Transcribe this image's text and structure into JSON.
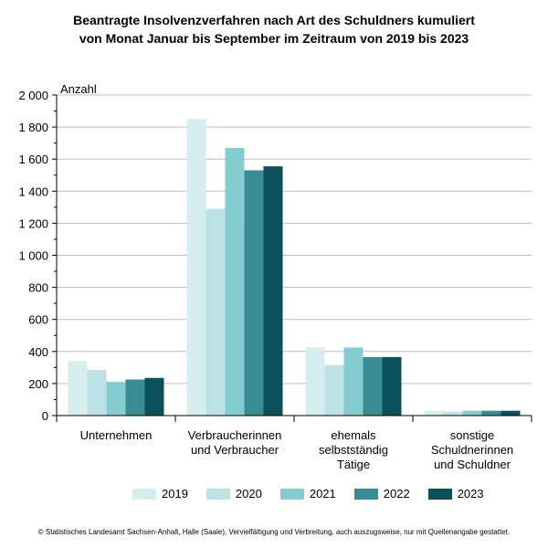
{
  "chart_data": {
    "type": "bar",
    "title": [
      "Beantragte Insolvenzverfahren nach Art des Schuldners kumuliert",
      "von Monat Januar bis September im Zeitraum von 2019 bis 2023"
    ],
    "ylabel": "Anzahl",
    "ylim": [
      0,
      2000
    ],
    "yticks": [
      0,
      200,
      400,
      600,
      800,
      1000,
      1200,
      1400,
      1600,
      1800,
      2000
    ],
    "ytick_labels": [
      "0",
      "200",
      "400",
      "600",
      "800",
      "1 000",
      "1 200",
      "1 400",
      "1 600",
      "1 800",
      "2 000"
    ],
    "grid": true,
    "legend_position": "bottom",
    "categories": [
      [
        "Unternehmen"
      ],
      [
        "Verbraucherinnen",
        "und Verbraucher"
      ],
      [
        "ehemals",
        "selbstständig",
        "Tätige"
      ],
      [
        "sonstige",
        "Schuldnerinnen",
        "und Schuldner"
      ]
    ],
    "series": [
      {
        "name": "2019",
        "color": "#d6eef0",
        "values": [
          340,
          1850,
          425,
          30
        ]
      },
      {
        "name": "2020",
        "color": "#bde2e5",
        "values": [
          285,
          1290,
          315,
          25
        ]
      },
      {
        "name": "2021",
        "color": "#85ccd1",
        "values": [
          210,
          1670,
          425,
          30
        ]
      },
      {
        "name": "2022",
        "color": "#3a8c94",
        "values": [
          225,
          1530,
          365,
          30
        ]
      },
      {
        "name": "2023",
        "color": "#0b505b",
        "values": [
          235,
          1555,
          365,
          30
        ]
      }
    ]
  },
  "footer": "© Statistisches Landesamt Sachsen-Anhalt, Halle (Saale), Vervielfältigung und Verbreitung, auch auszugsweise, nur mit Quellenangabe gestattet."
}
